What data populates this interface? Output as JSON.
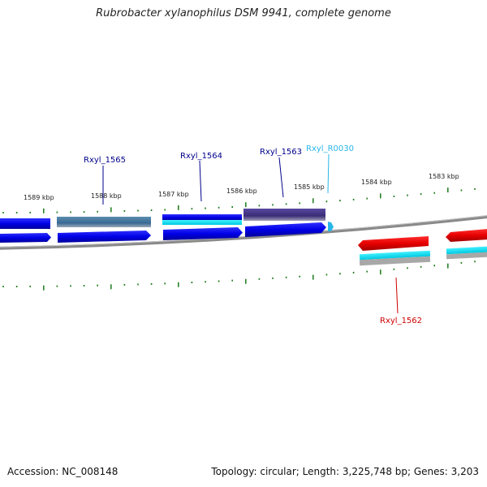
{
  "title": "Rubrobacter xylanophilus DSM 9941, complete genome",
  "footer": {
    "accession": "Accession: NC_008148",
    "summary": "Topology: circular; Length: 3,225,748 bp; Genes: 3,203"
  },
  "axis_ticks": [
    "1589 kbp",
    "1588 kbp",
    "1587 kbp",
    "1586 kbp",
    "1585 kbp",
    "1584 kbp",
    "1583 kbp"
  ],
  "genes": [
    {
      "label": "Rxyl_1565",
      "color": "#00008b"
    },
    {
      "label": "Rxyl_1564",
      "color": "#00008b"
    },
    {
      "label": "Rxyl_1563",
      "color": "#00008b"
    },
    {
      "label": "Rxyl_R0030",
      "color": "#29b6e8"
    },
    {
      "label": "Rxyl_1562",
      "color": "#cc0000"
    }
  ],
  "colors": {
    "forward_gene": "#0000e6",
    "reverse_gene": "#e60000",
    "cds_highlight": "#00e5ff",
    "backbone": "#808080",
    "tick": "#1a7a1a"
  }
}
